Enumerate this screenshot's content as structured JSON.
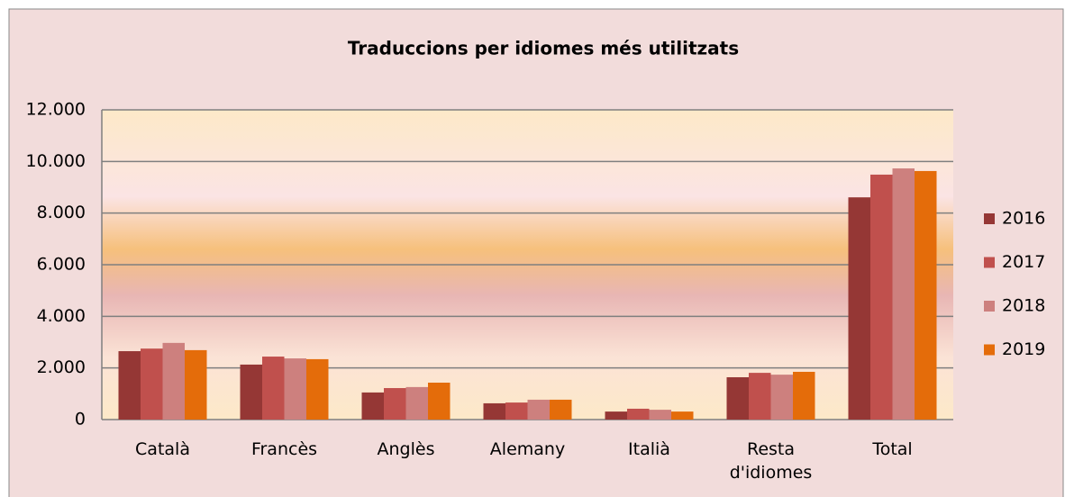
{
  "chart_data": {
    "type": "bar",
    "title": "Traduccions per idiomes més utilitzats",
    "categories": [
      "Català",
      "Francès",
      "Anglès",
      "Alemany",
      "Italià",
      "Resta d'idiomes",
      "Total"
    ],
    "series": [
      {
        "name": "2016",
        "color": "#953735",
        "values": [
          2650,
          2130,
          1050,
          630,
          310,
          1640,
          8610
        ]
      },
      {
        "name": "2017",
        "color": "#c0504d",
        "values": [
          2750,
          2440,
          1220,
          660,
          420,
          1810,
          9490
        ]
      },
      {
        "name": "2018",
        "color": "#cd807e",
        "values": [
          2970,
          2370,
          1260,
          770,
          380,
          1740,
          9730
        ]
      },
      {
        "name": "2019",
        "color": "#e46c0a",
        "values": [
          2690,
          2340,
          1430,
          770,
          310,
          1850,
          9630
        ]
      }
    ],
    "ylim": [
      0,
      12000
    ],
    "yticks": [
      0,
      {
        "value": 2000,
        "label": "2.000"
      },
      {
        "value": 4000,
        "label": "4.000"
      },
      {
        "value": 6000,
        "label": "6.000"
      },
      {
        "value": 8000,
        "label": "8.000"
      },
      {
        "value": 10000,
        "label": "10.000"
      },
      {
        "value": 12000,
        "label": "12.000"
      }
    ],
    "grid": true,
    "legend": "right"
  }
}
